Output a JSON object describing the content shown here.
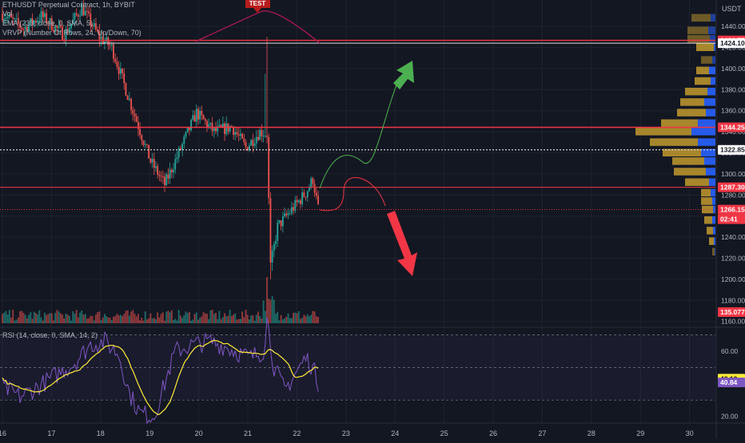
{
  "symbol_line": "ETHUSDT Perpetual Contract, 1h, BYBIT",
  "indicators": {
    "vol": "Vol",
    "ema": "EMA (233, close, 0, SMA, 5)",
    "vrvp": "VRVP (Number Of Rows, 24, Up/Down, 70)",
    "rsi": "RSI (14, close, 0, SMA, 14, 2)"
  },
  "currency_label": "USDT",
  "annotation_label": "TEST",
  "price_axis_ticks": [
    1440,
    1420,
    1400,
    1380,
    1360,
    1340,
    1320,
    1300,
    1280,
    1260,
    1240,
    1220,
    1200,
    1180,
    1160
  ],
  "rsi_axis_ticks": [
    60.0,
    40.0,
    20.0
  ],
  "time_axis_labels": [
    "16",
    "17",
    "18",
    "19",
    "20",
    "21",
    "22",
    "23",
    "24",
    "25",
    "26",
    "27",
    "28",
    "29",
    "30"
  ],
  "price_tags": [
    {
      "text": "1426.75",
      "price": 1426.75,
      "color": "#f23645"
    },
    {
      "text": "1424.10",
      "price": 1424.1,
      "color": "#ffffff"
    },
    {
      "text": "1344.25",
      "price": 1344.25,
      "color": "#f23645"
    },
    {
      "text": "1322.85",
      "price": 1322.85,
      "color": "#ffffff"
    },
    {
      "text": "1287.30",
      "price": 1287.3,
      "color": "#f23645"
    },
    {
      "text": "1266.15",
      "price": 1266.15,
      "color": "#f23645"
    }
  ],
  "countdown": "02:41",
  "volume_tag": "135.077K",
  "rsi_tags": [
    {
      "text": "43.12",
      "value": 43.12,
      "color": "#ffeb3b"
    },
    {
      "text": "40.84",
      "value": 40.84,
      "color": "#7e57c2"
    }
  ],
  "colors": {
    "background": "#131722",
    "up": "#26a69a",
    "down": "#ef5350",
    "line_red": "#f23645",
    "rsi_line": "#7e57c2",
    "rsi_ma": "#ffeb3b",
    "arrow_up": "#4caf50",
    "arrow_down": "#f23645",
    "vp_gold": "#b8922e",
    "vp_blue": "#2962ff"
  }
}
